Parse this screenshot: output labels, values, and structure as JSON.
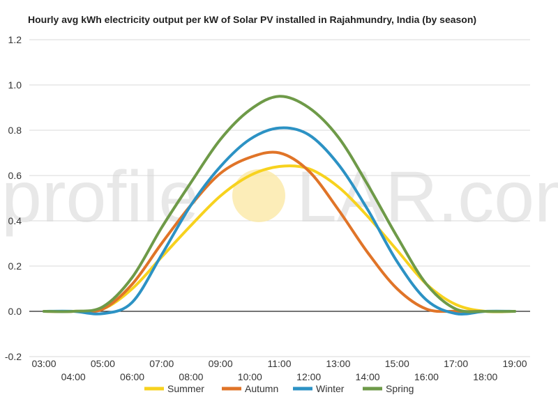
{
  "chart_data": {
    "type": "line",
    "title": "Hourly avg kWh electricity output per kW of Solar PV installed in Rajahmundry, India (by season)",
    "watermark": {
      "left": "profile",
      "right": "LAR.com"
    },
    "x": [
      "03:00",
      "04:00",
      "05:00",
      "06:00",
      "07:00",
      "08:00",
      "09:00",
      "10:00",
      "11:00",
      "12:00",
      "13:00",
      "14:00",
      "15:00",
      "16:00",
      "17:00",
      "18:00",
      "19:00"
    ],
    "yticks": [
      "1.2",
      "1.0",
      "0.8",
      "0.6",
      "0.4",
      "0.2",
      "0.0",
      "-0.2"
    ],
    "ylim": [
      -0.2,
      1.2
    ],
    "grid": true,
    "legend_position": "bottom",
    "series": [
      {
        "name": "Summer",
        "color": "#f7d21e",
        "values": [
          0.0,
          0.0,
          0.01,
          0.1,
          0.24,
          0.38,
          0.51,
          0.6,
          0.64,
          0.63,
          0.55,
          0.42,
          0.27,
          0.12,
          0.03,
          0.0,
          0.0
        ]
      },
      {
        "name": "Autumn",
        "color": "#e07428",
        "values": [
          0.0,
          0.0,
          0.01,
          0.12,
          0.3,
          0.47,
          0.61,
          0.68,
          0.7,
          0.62,
          0.45,
          0.26,
          0.1,
          0.01,
          0.0,
          0.0,
          0.0
        ]
      },
      {
        "name": "Winter",
        "color": "#2c92c4",
        "values": [
          0.0,
          0.0,
          -0.01,
          0.04,
          0.25,
          0.47,
          0.64,
          0.76,
          0.81,
          0.78,
          0.65,
          0.45,
          0.22,
          0.05,
          -0.01,
          0.0,
          0.0
        ]
      },
      {
        "name": "Spring",
        "color": "#6e9a48",
        "values": [
          0.0,
          0.0,
          0.02,
          0.15,
          0.37,
          0.57,
          0.76,
          0.89,
          0.95,
          0.9,
          0.77,
          0.56,
          0.33,
          0.12,
          0.01,
          0.0,
          0.0
        ]
      }
    ]
  }
}
